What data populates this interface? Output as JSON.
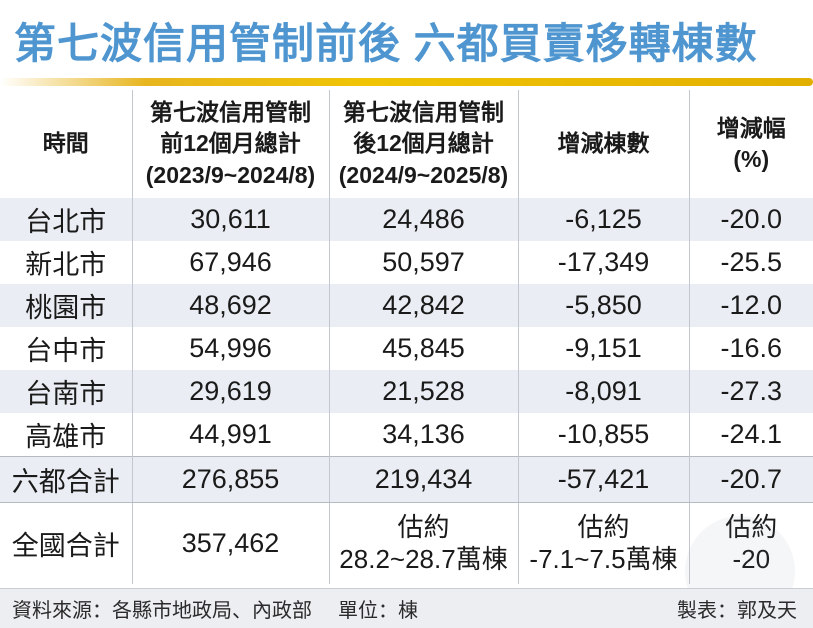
{
  "title": "第七波信用管制前後 六都買賣移轉棟數",
  "colors": {
    "title_blue": "#4f96d0",
    "gold_bar": "#e8b600",
    "row_alt_bg": "#eaedf3",
    "footer_bg": "#eceef2"
  },
  "table": {
    "headers": [
      "時間",
      "第七波信用管制\n前12個月總計\n(2023/9~2024/8)",
      "第七波信用管制\n後12個月總計\n(2024/9~2025/8)",
      "增減棟數",
      "增減幅\n(%)"
    ],
    "rows": [
      [
        "台北市",
        "30,611",
        "24,486",
        "-6,125",
        "-20.0"
      ],
      [
        "新北市",
        "67,946",
        "50,597",
        "-17,349",
        "-25.5"
      ],
      [
        "桃園市",
        "48,692",
        "42,842",
        "-5,850",
        "-12.0"
      ],
      [
        "台中市",
        "54,996",
        "45,845",
        "-9,151",
        "-16.6"
      ],
      [
        "台南市",
        "29,619",
        "21,528",
        "-8,091",
        "-27.3"
      ],
      [
        "高雄市",
        "44,991",
        "34,136",
        "-10,855",
        "-24.1"
      ],
      [
        "六都合計",
        "276,855",
        "219,434",
        "-57,421",
        "-20.7"
      ],
      [
        "全國合計",
        "357,462",
        "估約\n28.2~28.7萬棟",
        "估約\n-7.1~7.5萬棟",
        "估約\n-20"
      ]
    ]
  },
  "footer": {
    "source": "資料來源：各縣市地政局、內政部",
    "unit": "單位：棟",
    "credit": "製表：郭及天"
  },
  "chart_data": {
    "type": "table",
    "title": "第七波信用管制前後 六都買賣移轉棟數",
    "columns": [
      "時間",
      "第七波信用管制前12個月總計(2023/9~2024/8)",
      "第七波信用管制後12個月總計(2024/9~2025/8)",
      "增減棟數",
      "增減幅(%)"
    ],
    "rows": [
      {
        "region": "台北市",
        "before_12m": 30611,
        "after_12m": 24486,
        "change_units": -6125,
        "change_pct": -20.0
      },
      {
        "region": "新北市",
        "before_12m": 67946,
        "after_12m": 50597,
        "change_units": -17349,
        "change_pct": -25.5
      },
      {
        "region": "桃園市",
        "before_12m": 48692,
        "after_12m": 42842,
        "change_units": -5850,
        "change_pct": -12.0
      },
      {
        "region": "台中市",
        "before_12m": 54996,
        "after_12m": 45845,
        "change_units": -9151,
        "change_pct": -16.6
      },
      {
        "region": "台南市",
        "before_12m": 29619,
        "after_12m": 21528,
        "change_units": -8091,
        "change_pct": -27.3
      },
      {
        "region": "高雄市",
        "before_12m": 44991,
        "after_12m": 34136,
        "change_units": -10855,
        "change_pct": -24.1
      },
      {
        "region": "六都合計",
        "before_12m": 276855,
        "after_12m": 219434,
        "change_units": -57421,
        "change_pct": -20.7
      },
      {
        "region": "全國合計",
        "before_12m": 357462,
        "after_12m": "估約28.2~28.7萬棟",
        "change_units": "估約-7.1~7.5萬棟",
        "change_pct": "估約-20"
      }
    ],
    "unit": "棟",
    "source": "各縣市地政局、內政部",
    "credit": "郭及天"
  }
}
